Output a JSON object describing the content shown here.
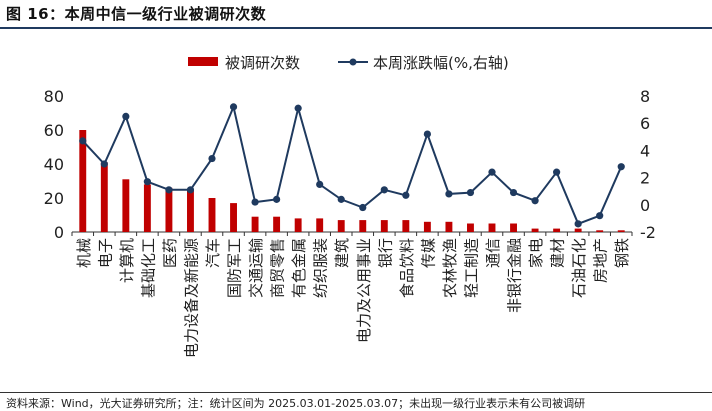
{
  "header": {
    "title": "图 16：本周中信一级行业被调研次数"
  },
  "footer": {
    "note": "资料来源：Wind，光大证券研究所；注：统计区间为 2025.03.01-2025.03.07；未出现一级行业表示未有公司被调研"
  },
  "colors": {
    "bar": "#c00000",
    "line": "#1f3a5f",
    "title_rule": "#1f3a5f"
  },
  "chart_data": {
    "type": "bar",
    "categories": [
      "机械",
      "电子",
      "计算机",
      "基础化工",
      "医药",
      "电力设备及新能源",
      "汽车",
      "国防军工",
      "交通运输",
      "商贸零售",
      "有色金属",
      "纺织服装",
      "建筑",
      "电力及公用事业",
      "银行",
      "食品饮料",
      "传媒",
      "农林牧渔",
      "轻工制造",
      "通信",
      "非银行金融",
      "家电",
      "建材",
      "石油石化",
      "房地产",
      "钢铁"
    ],
    "series": [
      {
        "name": "被调研次数",
        "type": "bar",
        "axis": "left",
        "values": [
          60,
          41,
          31,
          28,
          26,
          25,
          20,
          17,
          9,
          9,
          8,
          8,
          7,
          7,
          7,
          7,
          6,
          6,
          5,
          5,
          5,
          2,
          2,
          2,
          1,
          1
        ]
      },
      {
        "name": "本周涨跌幅(%,右轴)",
        "type": "line",
        "axis": "right",
        "values": [
          4.7,
          3.0,
          6.5,
          1.7,
          1.1,
          1.1,
          3.4,
          7.2,
          0.2,
          0.4,
          7.1,
          1.5,
          0.4,
          -0.2,
          1.1,
          0.7,
          5.2,
          0.8,
          0.9,
          2.4,
          0.9,
          0.3,
          2.4,
          -1.4,
          -0.8,
          2.8
        ]
      }
    ],
    "y_left": {
      "ylim": [
        0,
        80
      ],
      "ticks": [
        "0",
        "20",
        "40",
        "60",
        "80"
      ]
    },
    "y_right": {
      "ylim": [
        -2,
        8
      ],
      "ticks": [
        "-2",
        "0",
        "2",
        "4",
        "6",
        "8"
      ]
    },
    "legend": {
      "position": "top",
      "items": [
        {
          "label": "被调研次数",
          "kind": "bar"
        },
        {
          "label": "本周涨跌幅(%,右轴)",
          "kind": "line"
        }
      ]
    },
    "grid": false
  }
}
